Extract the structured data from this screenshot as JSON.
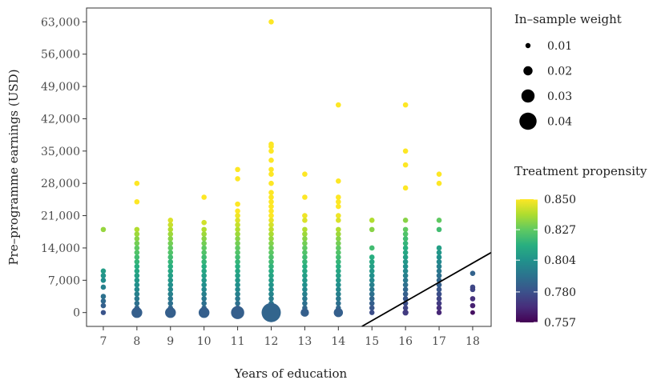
{
  "chart_data": {
    "type": "scatter",
    "xlabel": "Years of education",
    "ylabel": "Pre–programme earnings (USD)",
    "x_ticks": [
      "7",
      "8",
      "9",
      "10",
      "11",
      "12",
      "13",
      "14",
      "15",
      "16",
      "17",
      "18"
    ],
    "x_range": [
      6.5,
      18.55
    ],
    "y_ticks": [
      "0",
      "7,000",
      "14,000",
      "21,000",
      "28,000",
      "35,000",
      "42,000",
      "49,000",
      "56,000",
      "63,000"
    ],
    "y_tick_values": [
      0,
      7000,
      14000,
      21000,
      28000,
      35000,
      42000,
      49000,
      56000,
      63000
    ],
    "y_range": [
      -3000,
      66000
    ],
    "size_legend": {
      "title": "In–sample weight",
      "entries": [
        {
          "label": "0.01",
          "value": 0.01
        },
        {
          "label": "0.02",
          "value": 0.02
        },
        {
          "label": "0.03",
          "value": 0.03
        },
        {
          "label": "0.04",
          "value": 0.04
        }
      ]
    },
    "color_legend": {
      "title": "Treatment propensity",
      "labels": [
        "0.850",
        "0.827",
        "0.804",
        "0.780",
        "0.757"
      ],
      "values": [
        0.85,
        0.827,
        0.804,
        0.78,
        0.757
      ],
      "min": 0.757,
      "max": 0.85
    },
    "reference_line": {
      "x1": 14.7,
      "y1": -3000,
      "x2": 18.55,
      "y2": 13000,
      "color": "#000000"
    },
    "series": [
      {
        "x": 7,
        "y": [
          0,
          1500,
          2500,
          3500,
          5500,
          7000,
          8000,
          9000,
          18000
        ],
        "weight": 0.01
      },
      {
        "x": 8,
        "y": [
          0,
          1000,
          2000,
          3000,
          4000,
          5000,
          6000,
          7000,
          8000,
          9000,
          10000,
          11000,
          12000,
          13000,
          14000,
          15000,
          16000,
          17000,
          18000,
          24000,
          28000
        ],
        "weight": 0.024
      },
      {
        "x": 9,
        "y": [
          0,
          1000,
          2000,
          3000,
          4000,
          5000,
          6000,
          7000,
          8000,
          9000,
          10000,
          11000,
          12000,
          13000,
          14000,
          15000,
          16000,
          17000,
          18000,
          19000,
          20000
        ],
        "weight": 0.024
      },
      {
        "x": 10,
        "y": [
          0,
          1000,
          2000,
          3000,
          4000,
          5000,
          6000,
          7000,
          8000,
          9000,
          10000,
          11000,
          12000,
          13000,
          14000,
          15000,
          16000,
          17000,
          18000,
          19500,
          25000
        ],
        "weight": 0.024
      },
      {
        "x": 11,
        "y": [
          0,
          1000,
          2000,
          3000,
          4000,
          5000,
          6000,
          7000,
          8000,
          9000,
          10000,
          11000,
          12000,
          13000,
          14000,
          15000,
          16000,
          17000,
          18000,
          19000,
          20000,
          21000,
          22000,
          23500,
          29000,
          31000
        ],
        "weight": 0.03
      },
      {
        "x": 12,
        "y": [
          0,
          1000,
          2000,
          3000,
          4000,
          5000,
          6000,
          7000,
          8000,
          9000,
          10000,
          11000,
          12000,
          13000,
          14000,
          15000,
          16000,
          17000,
          18000,
          19000,
          20000,
          21000,
          22000,
          23000,
          24000,
          25000,
          26000,
          28000,
          30000,
          31000,
          33000,
          35000,
          36000,
          36500,
          63000
        ],
        "weight": 0.045
      },
      {
        "x": 13,
        "y": [
          0,
          1000,
          2000,
          3000,
          4000,
          5000,
          6000,
          7000,
          8000,
          9000,
          10000,
          11000,
          12000,
          13000,
          14000,
          15000,
          16000,
          17000,
          18000,
          20000,
          21000,
          25000,
          30000
        ],
        "weight": 0.018
      },
      {
        "x": 14,
        "y": [
          0,
          1000,
          2000,
          3000,
          4000,
          5000,
          6000,
          7000,
          8000,
          9000,
          10000,
          11000,
          12000,
          13000,
          14000,
          15000,
          16000,
          17000,
          18000,
          20000,
          21000,
          23000,
          24000,
          25000,
          28500,
          45000
        ],
        "weight": 0.02
      },
      {
        "x": 15,
        "y": [
          0,
          1000,
          2000,
          3000,
          4000,
          5000,
          6000,
          7000,
          8000,
          9000,
          10000,
          11000,
          12000,
          14000,
          18000,
          20000
        ],
        "weight": 0.01
      },
      {
        "x": 16,
        "y": [
          0,
          1000,
          2000,
          3000,
          4000,
          5000,
          6000,
          7000,
          8000,
          9000,
          10000,
          11000,
          12000,
          13000,
          14000,
          15000,
          16000,
          17000,
          18000,
          20000,
          27000,
          32000,
          35000,
          45000
        ],
        "weight": 0.012
      },
      {
        "x": 17,
        "y": [
          0,
          1000,
          2000,
          3000,
          4000,
          5000,
          6000,
          7000,
          8000,
          9000,
          10000,
          11000,
          12000,
          13000,
          14000,
          18000,
          20000,
          28000,
          30000
        ],
        "weight": 0.01
      },
      {
        "x": 18,
        "y": [
          0,
          1500,
          3000,
          5000,
          5500,
          8500
        ],
        "weight": 0.009
      }
    ]
  }
}
